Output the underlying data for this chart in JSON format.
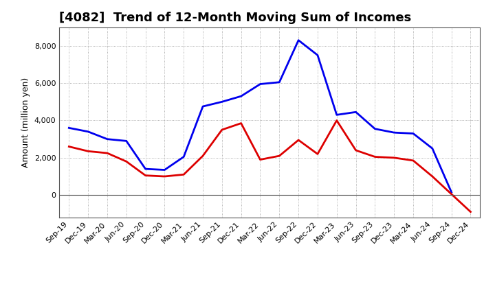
{
  "title": "[4082]  Trend of 12-Month Moving Sum of Incomes",
  "ylabel": "Amount (million yen)",
  "x_labels": [
    "Sep-19",
    "Dec-19",
    "Mar-20",
    "Jun-20",
    "Sep-20",
    "Dec-20",
    "Mar-21",
    "Jun-21",
    "Sep-21",
    "Dec-21",
    "Mar-22",
    "Jun-22",
    "Sep-22",
    "Dec-22",
    "Mar-23",
    "Jun-23",
    "Sep-23",
    "Dec-23",
    "Mar-24",
    "Jun-24",
    "Sep-24",
    "Dec-24"
  ],
  "ordinary_income": [
    3600,
    3400,
    3000,
    2900,
    1400,
    1350,
    2050,
    4750,
    5000,
    5300,
    5950,
    6050,
    8300,
    7500,
    4300,
    4450,
    3550,
    3350,
    3300,
    2500,
    150,
    null
  ],
  "net_income": [
    2600,
    2350,
    2250,
    1800,
    1050,
    1000,
    1100,
    2100,
    3500,
    3850,
    1900,
    2100,
    2950,
    2200,
    4000,
    2400,
    2050,
    2000,
    1850,
    1000,
    null,
    -900
  ],
  "ordinary_color": "#0000ee",
  "net_color": "#dd0000",
  "background_color": "#ffffff",
  "plot_bg_color": "#ffffff",
  "grid_color": "#999999",
  "ylim": [
    -1200,
    9000
  ],
  "yticks": [
    0,
    2000,
    4000,
    6000,
    8000
  ],
  "line_width": 2.0,
  "title_fontsize": 13,
  "label_fontsize": 8,
  "ylabel_fontsize": 9,
  "legend_fontsize": 9
}
